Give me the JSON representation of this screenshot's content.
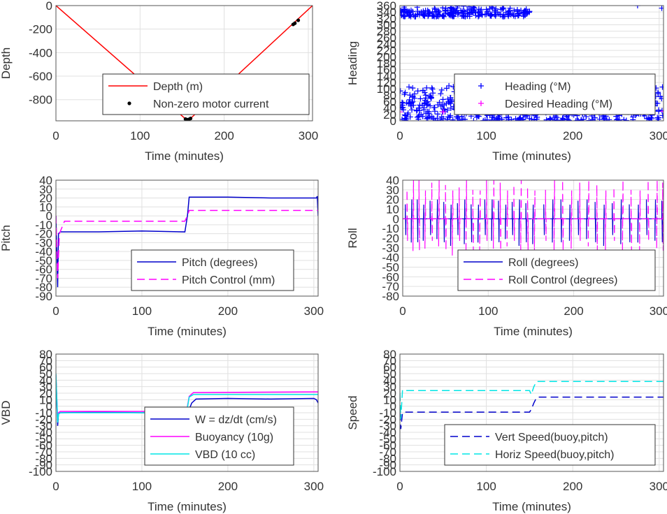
{
  "chart_data": [
    {
      "type": "line",
      "ylabel": "Depth",
      "xlabel": "Time (minutes)",
      "xlim": [
        0,
        305
      ],
      "ylim": [
        -980,
        0
      ],
      "xticks": [
        "0",
        "100",
        "200",
        "300"
      ],
      "yticks": [
        "0",
        "-200",
        "-400",
        "-600",
        "-800"
      ],
      "grid": true,
      "legend_position": "lower-right",
      "series": [
        {
          "name": "Depth (m)",
          "color": "#ff0000",
          "style": "solid",
          "x": [
            0,
            155,
            160,
            305
          ],
          "y": [
            0,
            -970,
            -960,
            0
          ]
        },
        {
          "name": "Non-zero motor current",
          "color": "#000000",
          "style": "dots",
          "x": [
            154,
            156,
            158,
            160,
            282,
            284,
            288
          ],
          "y": [
            -965,
            -970,
            -968,
            -960,
            -160,
            -150,
            -125
          ]
        }
      ]
    },
    {
      "type": "scatter",
      "ylabel": "Heading",
      "xlabel": "Time (minutes)",
      "xlim": [
        0,
        305
      ],
      "ylim": [
        0,
        360
      ],
      "xticks": [
        "0",
        "100",
        "200",
        "300"
      ],
      "yticks": [
        "0",
        "20",
        "40",
        "60",
        "80",
        "100",
        "120",
        "140",
        "160",
        "180",
        "200",
        "220",
        "240",
        "260",
        "280",
        "300",
        "320",
        "340",
        "360"
      ],
      "grid": true,
      "legend_position": "lower-right",
      "series": [
        {
          "name": "Heading (°M)",
          "color": "#0000ff",
          "marker": "+",
          "bands": [
            {
              "x": [
                0,
                150
              ],
              "y": [
                325,
                360
              ]
            },
            {
              "x": [
                0,
                305
              ],
              "y": [
                0,
                110
              ]
            }
          ],
          "x": [
            2,
            20,
            40,
            60,
            80,
            100,
            110,
            120,
            140,
            150,
            275,
            303
          ],
          "y": [
            330,
            355,
            352,
            350,
            356,
            348,
            340,
            352,
            345,
            342,
            360,
            352
          ]
        },
        {
          "name": "Desired Heading (°M)",
          "color": "#ff00ff",
          "marker": "+",
          "x": [
            0,
            50,
            100,
            150,
            200,
            250,
            305
          ],
          "y": [
            28,
            28,
            30,
            32,
            30,
            31,
            30
          ]
        }
      ]
    },
    {
      "type": "line",
      "ylabel": "Pitch",
      "xlabel": "Time (minutes)",
      "xlim": [
        0,
        305
      ],
      "ylim": [
        -90,
        40
      ],
      "xticks": [
        "0",
        "100",
        "200",
        "300"
      ],
      "yticks": [
        "40",
        "30",
        "20",
        "10",
        "0",
        "-10",
        "-20",
        "-30",
        "-40",
        "-50",
        "-60",
        "-70",
        "-80",
        "-90"
      ],
      "grid": true,
      "legend_position": "lower-right",
      "series": [
        {
          "name": "Pitch (degrees)",
          "color": "#0000cc",
          "style": "solid",
          "x": [
            0,
            2,
            3,
            5,
            50,
            100,
            150,
            153,
            155,
            200,
            250,
            303,
            304,
            305
          ],
          "y": [
            0,
            -80,
            -20,
            -18,
            -18,
            -17,
            -18,
            0,
            21,
            21,
            20,
            20,
            22,
            0
          ]
        },
        {
          "name": "Pitch Control (mm)",
          "color": "#ff00ff",
          "style": "dashed",
          "x": [
            0,
            2,
            4,
            10,
            150,
            153,
            155,
            305
          ],
          "y": [
            0,
            -70,
            -20,
            -6,
            -6,
            0,
            6,
            6
          ]
        }
      ]
    },
    {
      "type": "line",
      "ylabel": "Roll",
      "xlabel": "Time (minutes)",
      "xlim": [
        0,
        305
      ],
      "ylim": [
        -80,
        40
      ],
      "xticks": [
        "0",
        "100",
        "200",
        "300"
      ],
      "yticks": [
        "40",
        "30",
        "20",
        "10",
        "0",
        "-10",
        "-20",
        "-30",
        "-40",
        "-50",
        "-60",
        "-70",
        "-80"
      ],
      "grid": true,
      "legend_position": "lower-right",
      "series": [
        {
          "name": "Roll (degrees)",
          "color": "#0000cc",
          "style": "solid",
          "baseline": 0,
          "spike_amplitude": [
            20,
            -28
          ],
          "spikes_x": [
            3,
            10,
            17,
            24,
            32,
            40,
            48,
            56,
            64,
            72,
            80,
            88,
            96,
            104,
            112,
            120,
            128,
            136,
            144,
            152,
            165,
            175,
            185,
            195,
            205,
            215,
            225,
            235,
            245,
            255,
            265,
            275,
            285,
            295,
            303
          ]
        },
        {
          "name": "Roll Control (degrees)",
          "color": "#ff00ff",
          "style": "dashed",
          "baseline": 0,
          "spike_amplitude": [
            40,
            -38
          ],
          "spikes_x": [
            5,
            12,
            19,
            26,
            34,
            42,
            50,
            58,
            66,
            74,
            82,
            90,
            98,
            106,
            114,
            122,
            130,
            138,
            146,
            154,
            167,
            177,
            187,
            197,
            207,
            217,
            227,
            237,
            247,
            257,
            267,
            277,
            287,
            297,
            304
          ]
        }
      ]
    },
    {
      "type": "line",
      "ylabel": "VBD",
      "xlabel": "Time (minutes)",
      "xlim": [
        0,
        305
      ],
      "ylim": [
        -100,
        80
      ],
      "xticks": [
        "0",
        "100",
        "200",
        "300"
      ],
      "yticks": [
        "80",
        "70",
        "60",
        "50",
        "40",
        "30",
        "20",
        "10",
        "0",
        "-10",
        "-20",
        "-30",
        "-40",
        "-50",
        "-60",
        "-70",
        "-80",
        "-90",
        "-100"
      ],
      "grid": true,
      "legend_position": "lower-right",
      "series": [
        {
          "name": "W = dz/dt (cm/s)",
          "color": "#0000cc",
          "style": "solid",
          "x": [
            0,
            2,
            3,
            5,
            50,
            100,
            150,
            155,
            158,
            163,
            200,
            250,
            300,
            303,
            305
          ],
          "y": [
            45,
            -30,
            -12,
            -10,
            -9,
            -10,
            -10,
            -5,
            5,
            11,
            12,
            11,
            12,
            10,
            5
          ]
        },
        {
          "name": "Buoyancy (10g)",
          "color": "#ff00ff",
          "style": "solid",
          "x": [
            0,
            2,
            3,
            5,
            150,
            152,
            155,
            160,
            305
          ],
          "y": [
            48,
            -20,
            -10,
            -8,
            -8,
            -8,
            15,
            21,
            22
          ]
        },
        {
          "name": "VBD (10 cc)",
          "color": "#00e5e5",
          "style": "solid",
          "x": [
            0,
            2,
            3,
            5,
            150,
            152,
            155,
            160,
            305
          ],
          "y": [
            50,
            -25,
            -12,
            -10,
            -10,
            -10,
            14,
            18,
            18
          ]
        }
      ]
    },
    {
      "type": "line",
      "ylabel": "Speed",
      "xlabel": "Time (minutes)",
      "xlim": [
        0,
        305
      ],
      "ylim": [
        -100,
        80
      ],
      "xticks": [
        "0",
        "100",
        "200",
        "300"
      ],
      "yticks": [
        "80",
        "70",
        "60",
        "50",
        "40",
        "30",
        "20",
        "10",
        "0",
        "-10",
        "-20",
        "-30",
        "-40",
        "-50",
        "-60",
        "-70",
        "-80",
        "-90",
        "-100"
      ],
      "grid": true,
      "legend_position": "lower-right",
      "series": [
        {
          "name": "Vert Speed(buoy,pitch)",
          "color": "#0000cc",
          "style": "dashed",
          "x": [
            0,
            1,
            3,
            5,
            150,
            152,
            155,
            158,
            160,
            305
          ],
          "y": [
            -10,
            -35,
            -10,
            -9,
            -9,
            -5,
            5,
            13,
            14,
            14
          ]
        },
        {
          "name": "Horiz Speed(buoy,pitch)",
          "color": "#00e5e5",
          "style": "dashed",
          "x": [
            0,
            1,
            3,
            5,
            150,
            152,
            155,
            158,
            160,
            305
          ],
          "y": [
            20,
            -20,
            25,
            24,
            24,
            18,
            30,
            38,
            38,
            38
          ]
        }
      ]
    }
  ]
}
